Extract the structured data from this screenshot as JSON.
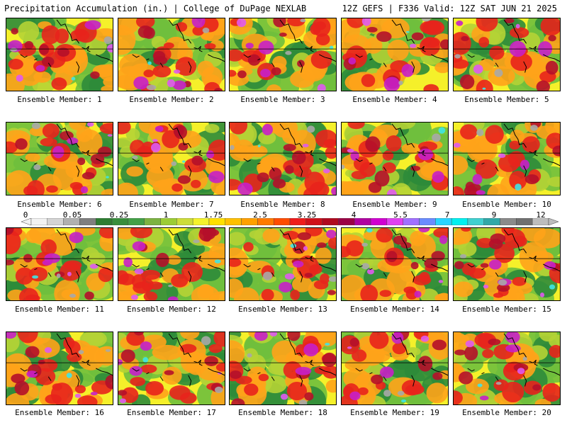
{
  "header": {
    "left": "Precipitation Accumulation (in.) | College of DuPage NEXLAB",
    "right": "12Z GEFS | F336 Valid: 12Z SAT JUN 21 2025"
  },
  "legend": {
    "ticks": [
      "0",
      "0.05",
      "0.25",
      "1",
      "1.75",
      "2.5",
      "3.25",
      "4",
      "5.5",
      "7",
      "9",
      "12"
    ],
    "colors": [
      "#f2f2f2",
      "#d4d4d4",
      "#b0b0b0",
      "#7f7f7f",
      "#2e7d32",
      "#388e3c",
      "#43a047",
      "#7cb342",
      "#9ccc35",
      "#cddc39",
      "#f4f32c",
      "#ffe000",
      "#ffc000",
      "#ffa000",
      "#ff7a00",
      "#ff4c00",
      "#ee1c1c",
      "#d0101a",
      "#b00a20",
      "#9b0045",
      "#b000a0",
      "#d000d0",
      "#e040f0",
      "#a070ff",
      "#6a8cff",
      "#29d4ff",
      "#00f0f0",
      "#40d0d0",
      "#30a8a8",
      "#8a8a8a",
      "#707070",
      "#bdbdbd"
    ]
  },
  "panels": [
    {
      "label": "Ensemble Member: 1",
      "seed": 1
    },
    {
      "label": "Ensemble Member: 2",
      "seed": 2
    },
    {
      "label": "Ensemble Member: 3",
      "seed": 3
    },
    {
      "label": "Ensemble Member: 4",
      "seed": 4
    },
    {
      "label": "Ensemble Member: 5",
      "seed": 5
    },
    {
      "label": "Ensemble Member: 6",
      "seed": 6
    },
    {
      "label": "Ensemble Member: 7",
      "seed": 7
    },
    {
      "label": "Ensemble Member: 8",
      "seed": 8
    },
    {
      "label": "Ensemble Member: 9",
      "seed": 9
    },
    {
      "label": "Ensemble Member: 10",
      "seed": 10
    },
    {
      "label": "Ensemble Member: 11",
      "seed": 11
    },
    {
      "label": "Ensemble Member: 12",
      "seed": 12
    },
    {
      "label": "Ensemble Member: 13",
      "seed": 13
    },
    {
      "label": "Ensemble Member: 14",
      "seed": 14
    },
    {
      "label": "Ensemble Member: 15",
      "seed": 15
    },
    {
      "label": "Ensemble Member: 16",
      "seed": 16
    },
    {
      "label": "Ensemble Member: 17",
      "seed": 17
    },
    {
      "label": "Ensemble Member: 18",
      "seed": 18
    },
    {
      "label": "Ensemble Member: 19",
      "seed": 19
    },
    {
      "label": "Ensemble Member: 20",
      "seed": 20
    }
  ]
}
